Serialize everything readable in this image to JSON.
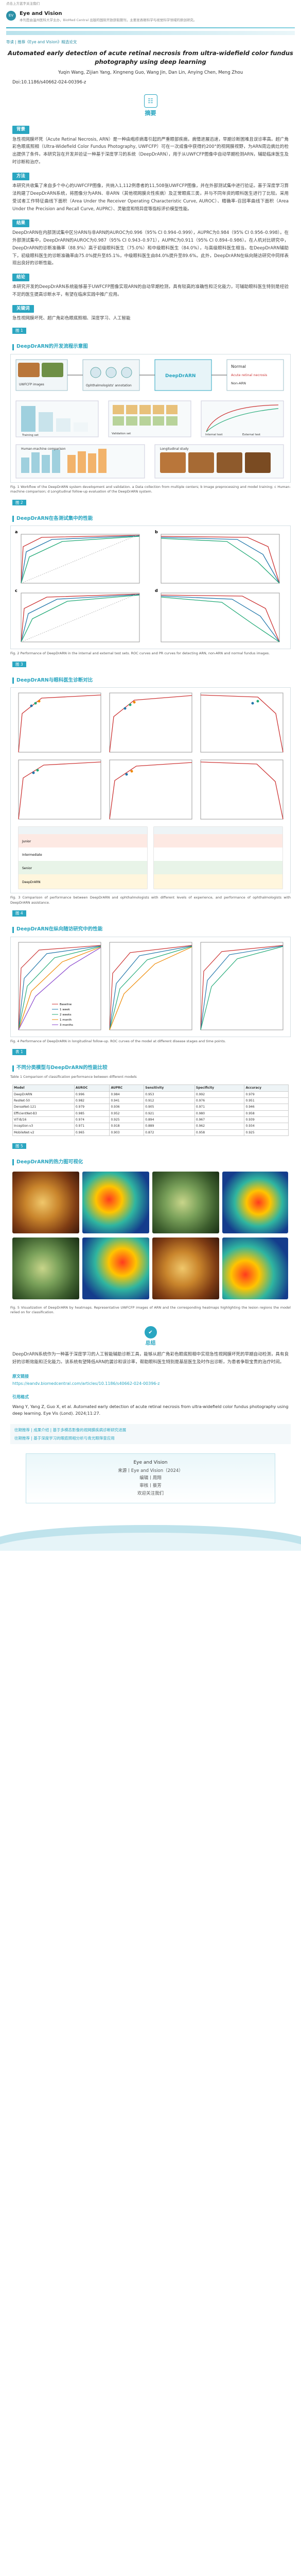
{
  "header": {
    "prev_label": "点击上方蓝字关注我们",
    "journal_name": "Eye and Vision",
    "logo_text": "EV",
    "journal_desc": "本刊是由温州医科大学主办，BioMed Central 出版的国际开放获取期刊，主要发表眼科学与视觉科学领域的原创研究。"
  },
  "intro": "导读 | 推荐《Eye and Vision》精选论文",
  "article": {
    "title": "Automated early detection of acute retinal necrosis from ultra-widefield color fundus photography using deep learning",
    "authors": "Yuqin Wang, Zijian Yang, Xingneng Guo, Wang Jin, Dan Lin, Anying Chen, Meng Zhou",
    "doi": "Doi:10.1186/s40662-024-00396-z"
  },
  "abstract": {
    "label": "摘要",
    "icon": "book-icon",
    "bg_label": "背景",
    "bg_text": "急性视网膜坏死（Acute Retinal Necrosis, ARN）是一种由疱疹病毒引起的严重眼部疾病，病情进展迅速，早期诊断困难且误诊率高。超广角彩色眼底照相（Ultra-Widefield Color Fundus Photography, UWFCFP）可在一次成像中获得约200°的视网膜视野，为ARN周边病灶的检出提供了条件。本研究旨在开发并验证一种基于深度学习的系统（DeepDrARN），用于从UWFCFP图像中自动早期检测ARN，辅助临床医生及时诊断和治疗。",
    "methods_label": "方法",
    "methods_text": "本研究共收集了来自多个中心的UWFCFP图像，共纳入1,112例患者的11,508张UWFCFP图像，并在外部测试集中进行验证。基于深度学习算法构建了DeepDrARN系统，将图像分为ARN、非ARN（其他视网膜炎性疾病）及正常眼底三类，并与不同年资的眼科医生进行了比较。采用受试者工作特征曲线下面积（Area Under the Receiver Operating Characteristic Curve, AUROC）、精确率-召回率曲线下面积（Area Under the Precision and Recall Curve, AUPRC）、灵敏度和特异度等指标评价模型性能。",
    "results_label": "结果",
    "results_text": "DeepDrARN在内部测试集中区分ARN与非ARN的AUROC为0.996（95% CI 0.994–0.999），AUPRC为0.984（95% CI 0.956–0.998）。在外部测试集中，DeepDrARN的AUROC为0.987（95% CI 0.943–0.971），AUPRC为0.911（95% CI 0.894–0.986）。在人机对比研究中，DeepDrARN的诊断准确率（88.9%）高于初级眼科医生（75.0%）和中级眼科医生（84.0%），与高级眼科医生相当。在DeepDrARN辅助下，初级眼科医生的诊断准确率由75.0%提升至85.1%，中级眼科医生由84.0%提升至89.6%。此外，DeepDrARN在纵向随访研究中同样表现出良好的诊断性能。",
    "conclusion_label": "结论",
    "conclusion_text": "本研究开发的DeepDrARN系统能够基于UWFCFP图像实现ARN的自动早期检测，具有较高的准确性和泛化能力，可辅助眼科医生特别是经验不足的医生提高诊断水平，有望在临床实践中推广应用。",
    "keywords_label": "关键词",
    "keywords_text": "急性视网膜坏死、超广角彩色眼底照相、深度学习、人工智能"
  },
  "figures": {
    "fig1": {
      "tag": "图 1",
      "title": "DeepDrARN的开发流程示意图",
      "caption": "Fig. 1 Workflow of the DeepDrARN system development and validation. a Data collection from multiple centers; b Image preprocessing and model training; c Human-machine comparison; d Longitudinal follow-up evaluation of the DeepDrARN system.",
      "labels": [
        "UWFCFP images",
        "Ophthalmologists' annotation",
        "DeepDrARN",
        "Normal",
        "Acute retinal necrosis",
        "Non-ARN",
        "Training set",
        "Validation set",
        "Internal test",
        "External test",
        "Human-machine comparison",
        "Longitudinal study"
      ]
    },
    "fig2": {
      "tag": "图 2",
      "title": "DeepDrARN在各测试集中的性能",
      "caption": "Fig. 2 Performance of DeepDrARN in the internal and external test sets. ROC curves and PR curves for detecting ARN, non-ARN and normal fundus images.",
      "panels": [
        "a",
        "b",
        "c",
        "d"
      ]
    },
    "fig3": {
      "tag": "图 3",
      "title": "DeepDrARN与眼科医生诊断对比",
      "caption": "Fig. 3 Comparison of performance between DeepDrARN and ophthalmologists with different levels of experience, and performance of ophthalmologists with DeepDrARN assistance.",
      "rows": [
        "Junior",
        "Intermediate",
        "Senior",
        "DeepDrARN"
      ]
    },
    "fig4": {
      "tag": "图 4",
      "title": "DeepDrARN在纵向随访研究中的性能",
      "caption": "Fig. 4 Performance of DeepDrARN in longitudinal follow-up. ROC curves of the model at different disease stages and time points.",
      "legend": [
        "Baseline",
        "1 week",
        "2 weeks",
        "1 month",
        "3 months"
      ]
    },
    "table1": {
      "tag": "表 1",
      "title": "不同分类模型与DeepDrARN的性能比较",
      "caption": "Table 1 Comparison of classification performance between different models",
      "headers": [
        "Model",
        "AUROC",
        "AUPRC",
        "Sensitivity",
        "Specificity",
        "Accuracy"
      ],
      "rows": [
        [
          "DeepDrARN",
          "0.996",
          "0.984",
          "0.953",
          "0.992",
          "0.979"
        ],
        [
          "ResNet-50",
          "0.982",
          "0.941",
          "0.912",
          "0.976",
          "0.951"
        ],
        [
          "DenseNet-121",
          "0.979",
          "0.936",
          "0.905",
          "0.971",
          "0.946"
        ],
        [
          "EfficientNet-B3",
          "0.985",
          "0.952",
          "0.921",
          "0.980",
          "0.958"
        ],
        [
          "ViT-B/16",
          "0.974",
          "0.925",
          "0.894",
          "0.967",
          "0.939"
        ],
        [
          "Inception-v3",
          "0.971",
          "0.918",
          "0.889",
          "0.962",
          "0.934"
        ],
        [
          "MobileNet-v2",
          "0.965",
          "0.903",
          "0.872",
          "0.958",
          "0.925"
        ]
      ]
    },
    "fig5": {
      "tag": "图 5",
      "title": "DeepDrARN的热力图可视化",
      "caption": "Fig. 5 Visualization of DeepDrARN by heatmaps. Representative UWFCFP images of ARN and the corresponding heatmaps highlighting the lesion regions the model relied on for classification."
    }
  },
  "summary": {
    "label": "总结",
    "text": "DeepDrARN系统作为一种基于深度学习的人工智能辅助诊断工具，能够从超广角彩色眼底照相中实现急性视网膜坏死的早期自动检测，具有良好的诊断效能和泛化能力。该系统有望降低ARN的漏诊和误诊率，帮助眼科医生特别是基层医生及时作出诊断，为患者争取宝贵的治疗时间。"
  },
  "link": {
    "label": "原文链接",
    "url": "https://eandv.biomedcentral.com/articles/10.1186/s40662-024-00396-z"
  },
  "citation": {
    "label": "引用格式",
    "text": "Wang Y, Yang Z, Guo X, et al. Automated early detection of acute retinal necrosis from ultra-widefield color fundus photography using deep learning. Eye Vis (Lond). 2024;11:27."
  },
  "prev_articles": [
    "往期推荐 | 成果介绍 | 基于多模态影像的视网膜疾病诊断研究进展",
    "往期推荐 | 基于深度学习的眼底照相分析与青光眼筛查应用"
  ],
  "footer": {
    "line1": "Eye and Vision",
    "line2": "来源丨Eye and Vision（2024）",
    "line3": "编辑丨周翔",
    "line4": "审核丨蔡芳",
    "line5": "欢迎关注我们"
  }
}
